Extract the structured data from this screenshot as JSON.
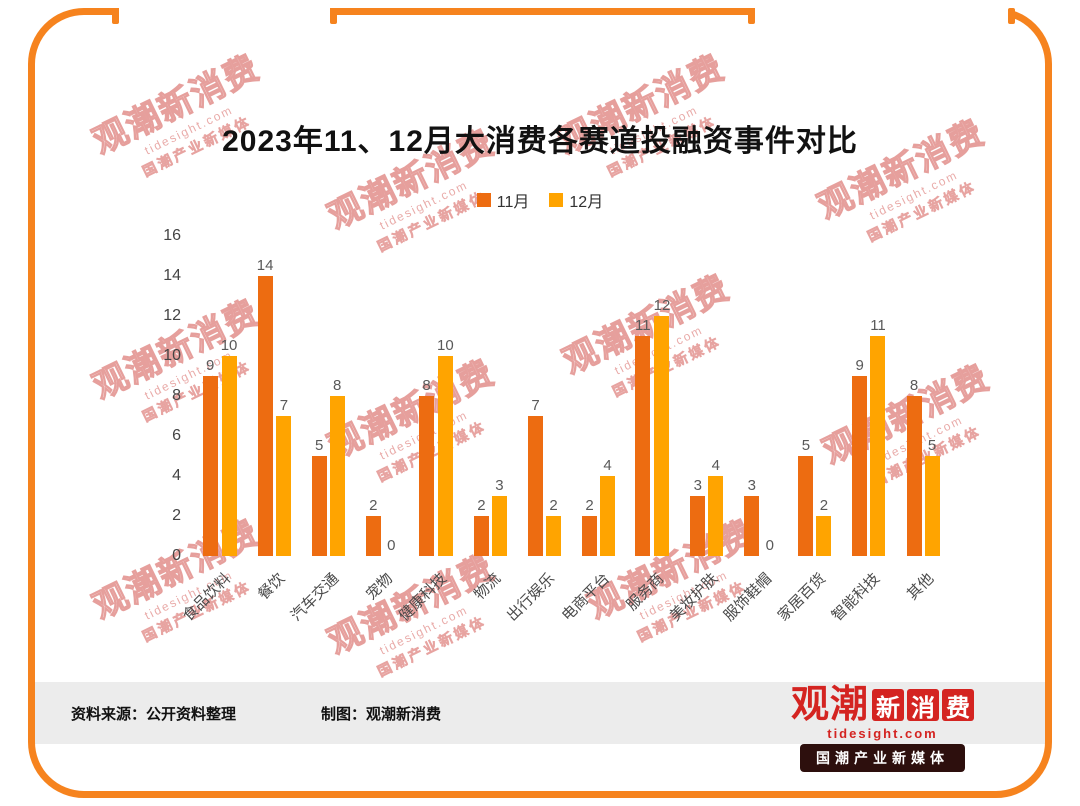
{
  "title": "2023年11、12月大消费各赛道投融资事件对比",
  "chart_data": {
    "type": "bar",
    "title": "2023年11、12月大消费各赛道投融资事件对比",
    "categories": [
      "食品饮料",
      "餐饮",
      "汽车交通",
      "宠物",
      "健康科技",
      "物流",
      "出行娱乐",
      "电商平台",
      "服务商",
      "美妆护肤",
      "服饰鞋帽",
      "家居百货",
      "智能科技",
      "其他"
    ],
    "series": [
      {
        "name": "11月",
        "color": "#ed6c11",
        "values": [
          9,
          14,
          5,
          2,
          8,
          2,
          7,
          2,
          11,
          3,
          3,
          5,
          9,
          8
        ]
      },
      {
        "name": "12月",
        "color": "#ffa400",
        "values": [
          10,
          7,
          8,
          0,
          10,
          3,
          2,
          4,
          12,
          4,
          0,
          2,
          11,
          5
        ]
      }
    ],
    "xlabel": "",
    "ylabel": "",
    "ylim": [
      0,
      16
    ],
    "yticks": [
      0,
      2,
      4,
      6,
      8,
      10,
      12,
      14,
      16
    ],
    "grid": false,
    "legend_position": "top",
    "value_labels": true
  },
  "footer": {
    "source": "资料来源：公开资料整理",
    "credit": "制图：观潮新消费"
  },
  "logo": {
    "brand_primary": "观潮",
    "brand_boxes": [
      "新",
      "消",
      "费"
    ],
    "domain": "tidesight.com",
    "tagline": "国潮产业新媒体"
  },
  "watermark": {
    "line1": "观潮新消费",
    "line2": "tidesight.com",
    "line3": "国潮产业新媒体"
  },
  "colors": {
    "frame": "#f6831e",
    "series_nov": "#ed6c11",
    "series_dec": "#ffa400",
    "footer_bg": "#ececec",
    "logo_red": "#d42421",
    "badge_bg": "#2d0f0d"
  }
}
